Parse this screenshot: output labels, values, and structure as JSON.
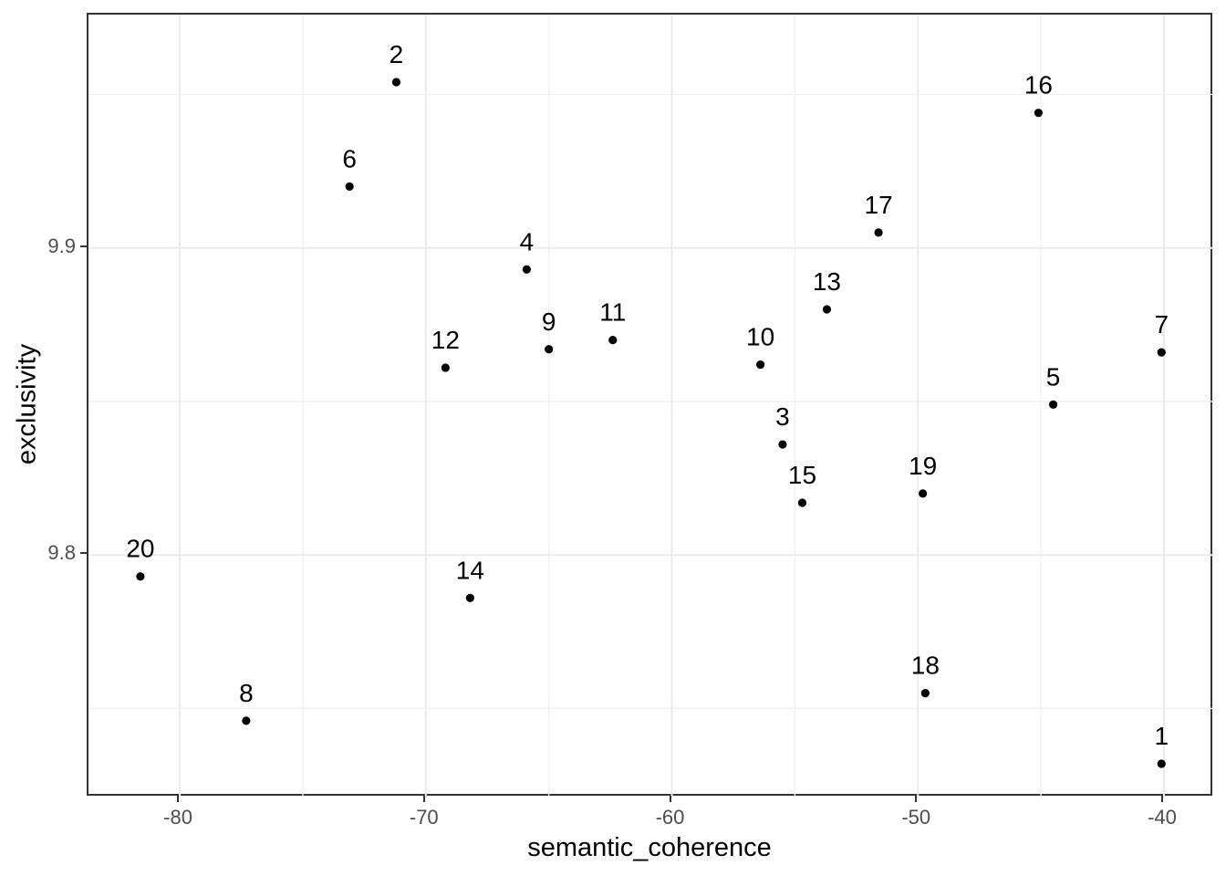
{
  "chart_data": {
    "type": "scatter",
    "title": "",
    "xlabel": "semantic_coherence",
    "ylabel": "exclusivity",
    "x_domain": [
      -83.71,
      -37.96
    ],
    "y_domain": [
      9.721,
      9.976
    ],
    "x_major_ticks": {
      "values": [
        -80,
        -70,
        -60,
        -50,
        -40
      ],
      "labels": [
        "-80",
        "-70",
        "-60",
        "-50",
        "-40"
      ]
    },
    "y_major_ticks": {
      "values": [
        9.8,
        9.9
      ],
      "labels": [
        "9.8",
        "9.9"
      ]
    },
    "x_minor_ticks": [
      -75,
      -65,
      -55,
      -45
    ],
    "y_minor_ticks": [
      9.75,
      9.85,
      9.95
    ],
    "grid": true,
    "legend_position": "none",
    "points": [
      {
        "label": "1",
        "x": -40.1,
        "y": 9.732
      },
      {
        "label": "2",
        "x": -71.2,
        "y": 9.954
      },
      {
        "label": "3",
        "x": -55.5,
        "y": 9.836
      },
      {
        "label": "4",
        "x": -65.9,
        "y": 9.893
      },
      {
        "label": "5",
        "x": -44.5,
        "y": 9.849
      },
      {
        "label": "6",
        "x": -73.1,
        "y": 9.92
      },
      {
        "label": "7",
        "x": -40.1,
        "y": 9.866
      },
      {
        "label": "8",
        "x": -77.3,
        "y": 9.746
      },
      {
        "label": "9",
        "x": -65.0,
        "y": 9.867
      },
      {
        "label": "10",
        "x": -56.4,
        "y": 9.862
      },
      {
        "label": "11",
        "x": -62.4,
        "y": 9.87
      },
      {
        "label": "12",
        "x": -69.2,
        "y": 9.861
      },
      {
        "label": "13",
        "x": -53.7,
        "y": 9.88
      },
      {
        "label": "14",
        "x": -68.2,
        "y": 9.786
      },
      {
        "label": "15",
        "x": -54.7,
        "y": 9.817
      },
      {
        "label": "16",
        "x": -45.1,
        "y": 9.944
      },
      {
        "label": "17",
        "x": -51.6,
        "y": 9.905
      },
      {
        "label": "18",
        "x": -49.7,
        "y": 9.755
      },
      {
        "label": "19",
        "x": -49.8,
        "y": 9.82
      },
      {
        "label": "20",
        "x": -81.6,
        "y": 9.793
      }
    ]
  },
  "style": {
    "point_color": "#000000",
    "point_label_color": "#000000",
    "tick_label_color": "#4d4d4d",
    "axis_title_color": "#000000",
    "grid_major_color": "#ebebeb",
    "grid_minor_color": "#f0f0f0",
    "panel_border_color": "#333333",
    "background_color": "#ffffff"
  }
}
